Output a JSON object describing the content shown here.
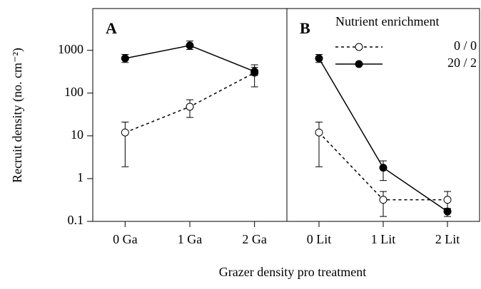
{
  "chart_data": {
    "type": "line",
    "y_scale": "log",
    "y_label": "Recruit density (no. cm⁻²)",
    "x_label": "Grazer density pro treatment",
    "ylim": [
      0.1,
      9500
    ],
    "yticks": [
      0.1,
      1,
      10,
      100,
      1000
    ],
    "legend_title": "Nutrient enrichment",
    "legend_position": "upper right",
    "legend": [
      {
        "name": "0 / 0",
        "color": "#000000",
        "marker_fill": "#ffffff",
        "dashed": true
      },
      {
        "name": "20 / 2",
        "color": "#000000",
        "marker_fill": "#000000",
        "dashed": false
      }
    ],
    "panels": [
      {
        "label": "A",
        "categories": [
          "0 Ga",
          "1 Ga",
          "2 Ga"
        ],
        "series": [
          {
            "values": [
              12,
              48,
              300
            ],
            "lower": [
              1.9,
              27,
              140
            ],
            "upper": [
              21,
              70,
              460
            ]
          },
          {
            "values": [
              650,
              1300,
              320
            ],
            "lower": [
              520,
              1050,
              260
            ],
            "upper": [
              800,
              1650,
              400
            ]
          }
        ]
      },
      {
        "label": "B",
        "categories": [
          "0 Lit",
          "1 Lit",
          "2 Lit"
        ],
        "series": [
          {
            "values": [
              12,
              0.32,
              0.32
            ],
            "lower": [
              1.9,
              0.13,
              0.2
            ],
            "upper": [
              21,
              0.5,
              0.5
            ]
          },
          {
            "values": [
              650,
              1.8,
              0.17
            ],
            "lower": [
              520,
              0.9,
              0.13
            ],
            "upper": [
              800,
              2.6,
              0.2
            ]
          }
        ]
      }
    ]
  }
}
